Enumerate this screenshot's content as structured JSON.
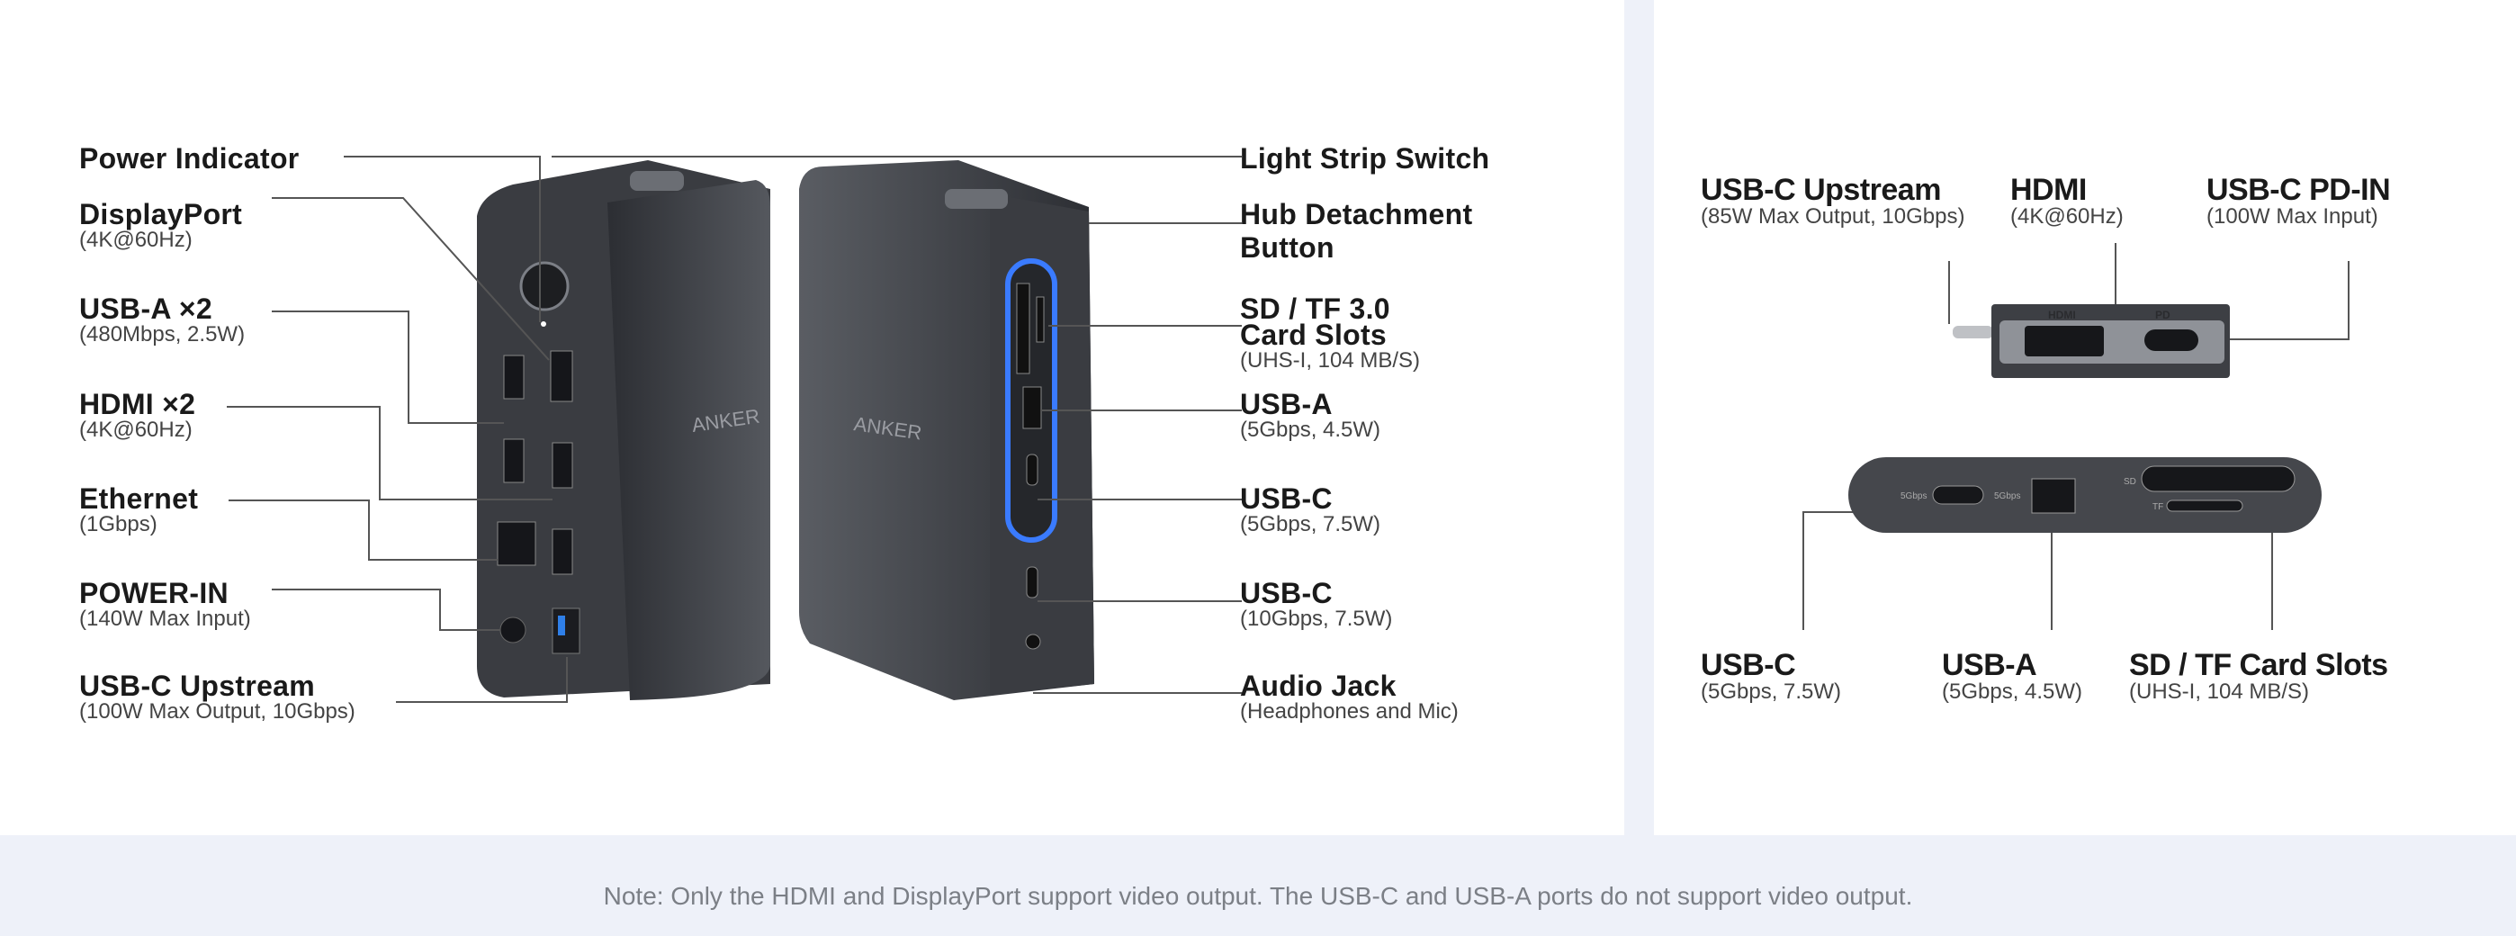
{
  "main_dock": {
    "left_labels": [
      {
        "title": "Power Indicator",
        "sub": ""
      },
      {
        "title": "DisplayPort",
        "sub": "(4K@60Hz)"
      },
      {
        "title": "USB-A ×2",
        "sub": "(480Mbps, 2.5W)"
      },
      {
        "title": "HDMI ×2",
        "sub": "(4K@60Hz)"
      },
      {
        "title": "Ethernet",
        "sub": "(1Gbps)"
      },
      {
        "title": "POWER-IN",
        "sub": "(140W Max Input)"
      },
      {
        "title": "USB-C Upstream",
        "sub": "(100W Max Output, 10Gbps)"
      }
    ],
    "right_labels": [
      {
        "title": "Light Strip Switch",
        "sub": ""
      },
      {
        "title": "Hub Detachment",
        "title2": "Button",
        "sub": ""
      },
      {
        "title": "SD / TF 3.0",
        "title2": "Card Slots",
        "sub": "(UHS-I, 104 MB/S)"
      },
      {
        "title": "USB-A",
        "sub": "(5Gbps, 4.5W)"
      },
      {
        "title": "USB-C",
        "sub": "(5Gbps, 7.5W)"
      },
      {
        "title": "USB-C",
        "sub": "(10Gbps, 7.5W)"
      },
      {
        "title": "Audio Jack",
        "sub": "(Headphones and Mic)"
      }
    ],
    "brand": "ANKER",
    "light_strip_color": "#3a7bff"
  },
  "detachable_hub": {
    "top_labels": [
      {
        "title": "USB-C Upstream",
        "sub": "(85W Max Output, 10Gbps)"
      },
      {
        "title": "HDMI",
        "sub": "(4K@60Hz)"
      },
      {
        "title": "USB-C PD-IN",
        "sub": "(100W Max Input)"
      }
    ],
    "bottom_labels": [
      {
        "title": "USB-C",
        "sub": "(5Gbps, 7.5W)"
      },
      {
        "title": "USB-A",
        "sub": "(5Gbps, 4.5W)"
      },
      {
        "title": "SD / TF Card Slots",
        "sub": "(UHS-I, 104 MB/S)"
      }
    ],
    "port_marks": {
      "hdmi": "HDMI",
      "pd": "PD",
      "speed": "5Gbps",
      "sd": "SD",
      "tf": "TF"
    }
  },
  "footer": {
    "note": "Note: Only the HDMI and DisplayPort support video output. The USB-C and USB-A ports do not support video output."
  }
}
